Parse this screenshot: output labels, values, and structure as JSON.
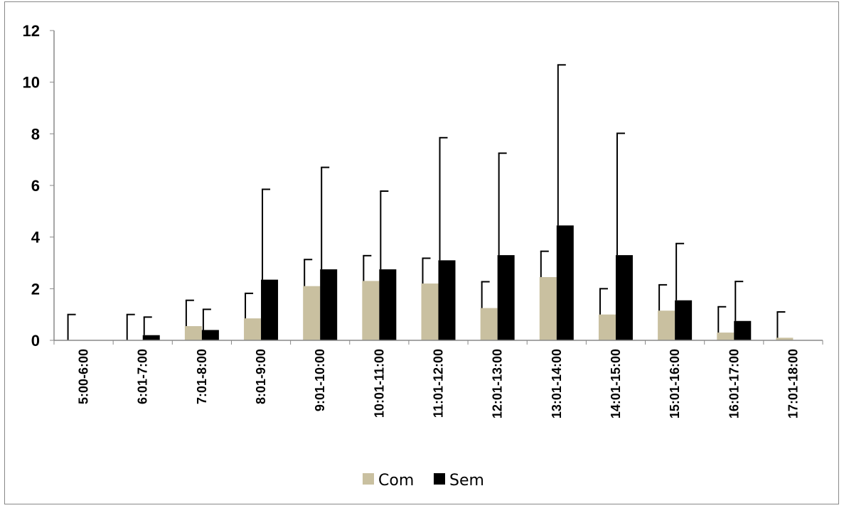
{
  "chart_data": {
    "type": "bar",
    "categories": [
      "5:00-6:00",
      "6:01-7:00",
      "7:01-8:00",
      "8:01-9:00",
      "9:01-10:00",
      "10:01-11:00",
      "11:01-12:00",
      "12:01-13:00",
      "13:01-14:00",
      "14:01-15:00",
      "15:01-16:00",
      "16:01-17:00",
      "17:01-18:00"
    ],
    "series": [
      {
        "name": "Com",
        "color": "#c9c0a0",
        "values": [
          0,
          0,
          0.55,
          0.85,
          2.1,
          2.3,
          2.2,
          1.25,
          2.45,
          1.0,
          1.15,
          0.3,
          0.1
        ],
        "error": [
          1.0,
          1.0,
          1.0,
          0.97,
          1.03,
          0.98,
          0.98,
          1.02,
          1.0,
          1.0,
          1.0,
          1.0,
          1.0
        ]
      },
      {
        "name": "Sem",
        "color": "#000000",
        "values": [
          0,
          0.2,
          0.4,
          2.35,
          2.75,
          2.75,
          3.1,
          3.3,
          4.45,
          3.3,
          1.55,
          0.75,
          0
        ],
        "error": [
          0,
          0.7,
          0.8,
          3.5,
          3.95,
          3.03,
          4.75,
          3.95,
          6.22,
          4.72,
          2.2,
          1.53,
          0
        ]
      }
    ],
    "ylim": [
      0,
      12
    ],
    "yticks": [
      0,
      2,
      4,
      6,
      8,
      10,
      12
    ],
    "legend_position": "bottom",
    "title": "",
    "xlabel": "",
    "ylabel": ""
  }
}
